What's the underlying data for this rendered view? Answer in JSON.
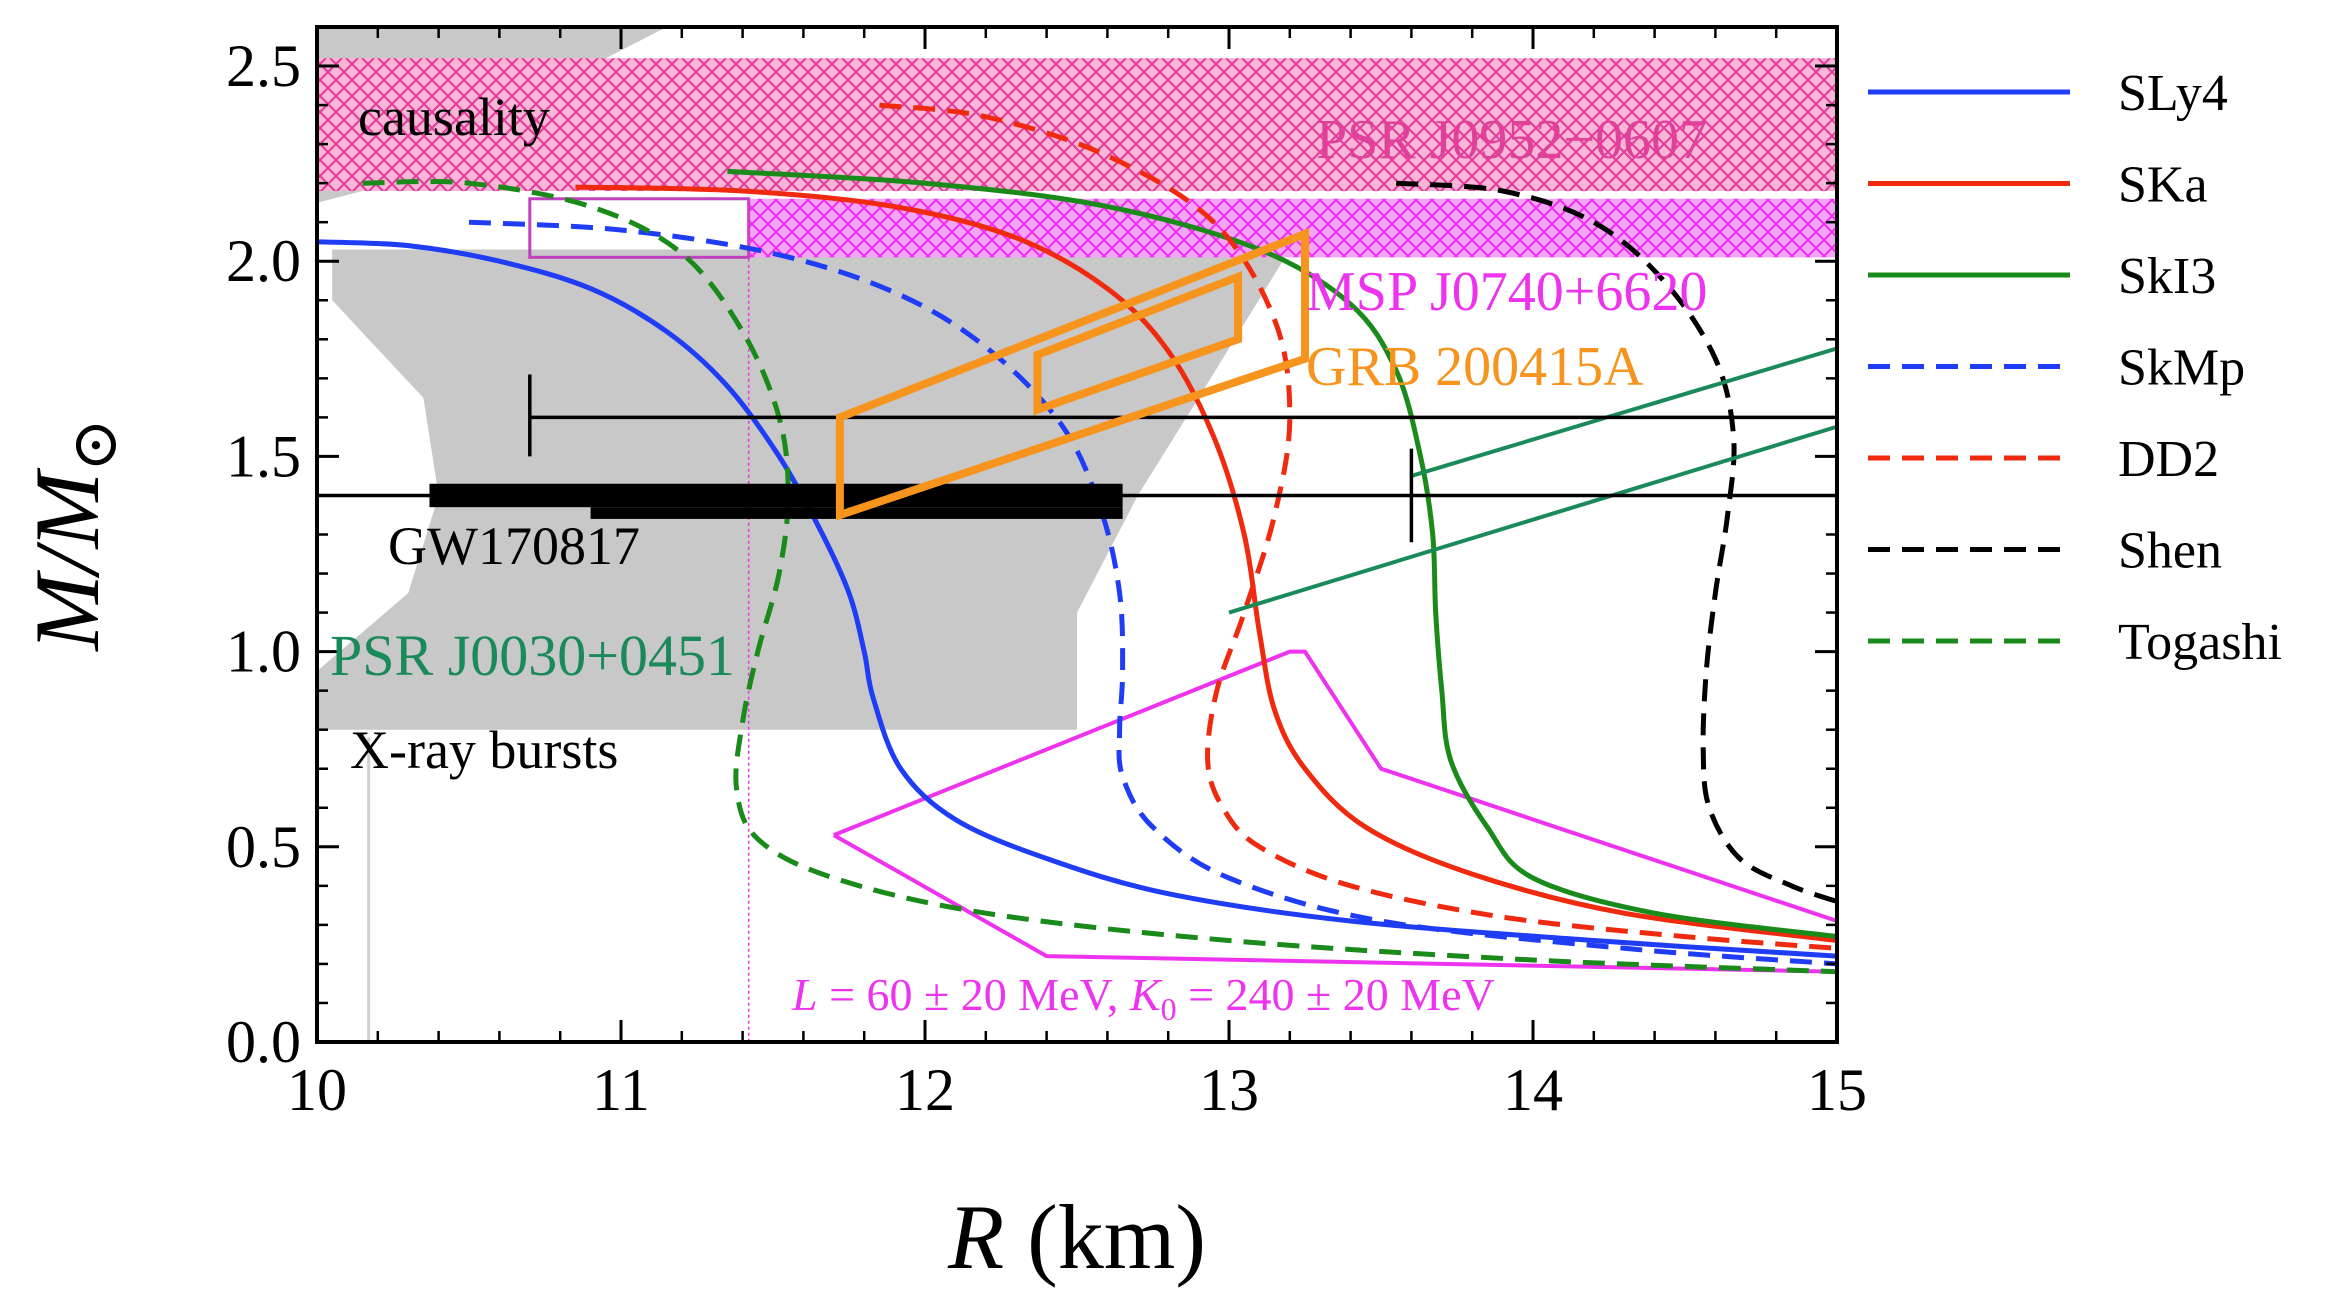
{
  "chart_data": {
    "type": "line",
    "xlabel": "R (km)",
    "ylabel": "M/M⊙",
    "xlim": [
      10,
      15
    ],
    "ylim": [
      0,
      2.6
    ],
    "x_ticks": [
      "10",
      "11",
      "12",
      "13",
      "14",
      "15"
    ],
    "y_ticks": [
      "0.0",
      "0.5",
      "1.0",
      "1.5",
      "2.0",
      "2.5"
    ],
    "grid": false,
    "legend_position": "right, outside plot",
    "series": [
      {
        "name": "SLy4",
        "style": "solid",
        "color": "#1f3df5",
        "points": [
          [
            10.0,
            2.05
          ],
          [
            10.3,
            2.04
          ],
          [
            10.6,
            2.0
          ],
          [
            10.9,
            1.93
          ],
          [
            11.15,
            1.82
          ],
          [
            11.35,
            1.68
          ],
          [
            11.52,
            1.5
          ],
          [
            11.65,
            1.32
          ],
          [
            11.75,
            1.15
          ],
          [
            11.8,
            1.0
          ],
          [
            11.83,
            0.88
          ],
          [
            11.92,
            0.7
          ],
          [
            12.1,
            0.57
          ],
          [
            12.4,
            0.47
          ],
          [
            12.8,
            0.38
          ],
          [
            13.4,
            0.31
          ],
          [
            14.2,
            0.26
          ],
          [
            15.0,
            0.22
          ]
        ]
      },
      {
        "name": "SKa",
        "style": "solid",
        "color": "#f02a0f",
        "points": [
          [
            10.85,
            2.19
          ],
          [
            11.4,
            2.18
          ],
          [
            11.9,
            2.14
          ],
          [
            12.3,
            2.06
          ],
          [
            12.6,
            1.93
          ],
          [
            12.8,
            1.77
          ],
          [
            12.95,
            1.55
          ],
          [
            13.05,
            1.3
          ],
          [
            13.1,
            1.05
          ],
          [
            13.15,
            0.85
          ],
          [
            13.25,
            0.7
          ],
          [
            13.45,
            0.55
          ],
          [
            13.8,
            0.43
          ],
          [
            14.3,
            0.33
          ],
          [
            15.0,
            0.26
          ]
        ]
      },
      {
        "name": "SkI3",
        "style": "solid",
        "color": "#1a8a1a",
        "points": [
          [
            11.35,
            2.23
          ],
          [
            12.0,
            2.2
          ],
          [
            12.6,
            2.14
          ],
          [
            13.1,
            2.03
          ],
          [
            13.4,
            1.89
          ],
          [
            13.55,
            1.72
          ],
          [
            13.63,
            1.5
          ],
          [
            13.67,
            1.3
          ],
          [
            13.68,
            1.1
          ],
          [
            13.7,
            0.9
          ],
          [
            13.73,
            0.72
          ],
          [
            13.85,
            0.55
          ],
          [
            14.0,
            0.42
          ],
          [
            14.4,
            0.33
          ],
          [
            15.0,
            0.27
          ]
        ]
      },
      {
        "name": "SkMp",
        "style": "dashed",
        "color": "#1f3df5",
        "points": [
          [
            10.5,
            2.1
          ],
          [
            11.0,
            2.08
          ],
          [
            11.5,
            2.02
          ],
          [
            11.9,
            1.92
          ],
          [
            12.2,
            1.78
          ],
          [
            12.45,
            1.58
          ],
          [
            12.58,
            1.36
          ],
          [
            12.64,
            1.15
          ],
          [
            12.65,
            0.95
          ],
          [
            12.64,
            0.8
          ],
          [
            12.65,
            0.68
          ],
          [
            12.75,
            0.55
          ],
          [
            13.0,
            0.42
          ],
          [
            13.5,
            0.31
          ],
          [
            14.3,
            0.24
          ],
          [
            15.0,
            0.2
          ]
        ]
      },
      {
        "name": "DD2",
        "style": "dashed",
        "color": "#f02a0f",
        "points": [
          [
            11.85,
            2.4
          ],
          [
            12.2,
            2.37
          ],
          [
            12.6,
            2.27
          ],
          [
            12.95,
            2.1
          ],
          [
            13.15,
            1.85
          ],
          [
            13.2,
            1.6
          ],
          [
            13.15,
            1.35
          ],
          [
            13.05,
            1.1
          ],
          [
            12.96,
            0.9
          ],
          [
            12.93,
            0.72
          ],
          [
            12.98,
            0.6
          ],
          [
            13.1,
            0.5
          ],
          [
            13.4,
            0.4
          ],
          [
            13.9,
            0.32
          ],
          [
            14.5,
            0.27
          ],
          [
            15.0,
            0.24
          ]
        ]
      },
      {
        "name": "Shen",
        "style": "dashed",
        "color": "#000000",
        "points": [
          [
            13.55,
            2.2
          ],
          [
            13.9,
            2.18
          ],
          [
            14.2,
            2.1
          ],
          [
            14.43,
            1.95
          ],
          [
            14.6,
            1.75
          ],
          [
            14.66,
            1.55
          ],
          [
            14.64,
            1.35
          ],
          [
            14.6,
            1.15
          ],
          [
            14.57,
            0.95
          ],
          [
            14.56,
            0.75
          ],
          [
            14.58,
            0.6
          ],
          [
            14.68,
            0.47
          ],
          [
            14.85,
            0.4
          ],
          [
            15.0,
            0.36
          ]
        ]
      },
      {
        "name": "Togashi",
        "style": "dashed",
        "color": "#1a8a1a",
        "points": [
          [
            10.15,
            2.2
          ],
          [
            10.5,
            2.2
          ],
          [
            10.9,
            2.14
          ],
          [
            11.2,
            2.02
          ],
          [
            11.4,
            1.82
          ],
          [
            11.52,
            1.6
          ],
          [
            11.55,
            1.4
          ],
          [
            11.52,
            1.2
          ],
          [
            11.45,
            1.0
          ],
          [
            11.4,
            0.82
          ],
          [
            11.38,
            0.65
          ],
          [
            11.45,
            0.52
          ],
          [
            11.7,
            0.42
          ],
          [
            12.2,
            0.33
          ],
          [
            13.0,
            0.26
          ],
          [
            14.0,
            0.21
          ],
          [
            15.0,
            0.18
          ]
        ]
      }
    ],
    "regions": [
      {
        "label": "causality",
        "color": "#c8c8c8"
      },
      {
        "label": "PSR J0952−0607",
        "color": "#e0409a",
        "y_range": [
          2.18,
          2.52
        ]
      },
      {
        "label": "MSP J0740+6620",
        "color": "#ee33ee",
        "y_range": [
          2.01,
          2.16
        ]
      },
      {
        "label": "GRB 200415A",
        "color": "#f7941d",
        "outer_box": [
          [
            11.72,
            1.35
          ],
          [
            11.72,
            1.6
          ],
          [
            13.25,
            2.07
          ],
          [
            13.25,
            1.75
          ]
        ],
        "inner_box": [
          [
            12.37,
            1.62
          ],
          [
            12.37,
            1.76
          ],
          [
            13.03,
            1.96
          ],
          [
            13.03,
            1.8
          ]
        ]
      },
      {
        "label": "GW170817",
        "color": "#000000"
      },
      {
        "label": "PSR J0030+0451",
        "color": "#1a8a5a"
      },
      {
        "label": "X-ray bursts",
        "color": "#c8c8c8"
      }
    ],
    "annotations": [
      {
        "text_parts": [
          "L",
          " = 60 ± 20 MeV, ",
          "K",
          "0",
          " = 240 ± 20 MeV"
        ],
        "color": "#ee33ee",
        "note": "magenta band",
        "band_points": [
          [
            11.7,
            0.53
          ],
          [
            13.2,
            1.0
          ],
          [
            13.25,
            1.0
          ],
          [
            13.5,
            0.7
          ],
          [
            15.0,
            0.31
          ],
          [
            15.0,
            0.18
          ],
          [
            12.4,
            0.22
          ],
          [
            11.7,
            0.53
          ]
        ]
      }
    ]
  },
  "labels": {
    "causality": "causality",
    "psr_j0952": "PSR J0952−0607",
    "msp_j0740": "MSP J0740+6620",
    "grb": "GRB 200415A",
    "gw": "GW170817",
    "psr_j0030": "PSR J0030+0451",
    "xray": "X-ray bursts",
    "xlabel_var": "R",
    "xlabel_unit": " (km)",
    "ylabel_var": "M/M",
    "ylabel_sym": "⊙",
    "lk_L": "L",
    "lk_mid": " = 60 ± 20 MeV, ",
    "lk_K": "K",
    "lk_sub": "0",
    "lk_end": " = 240 ± 20 MeV"
  }
}
